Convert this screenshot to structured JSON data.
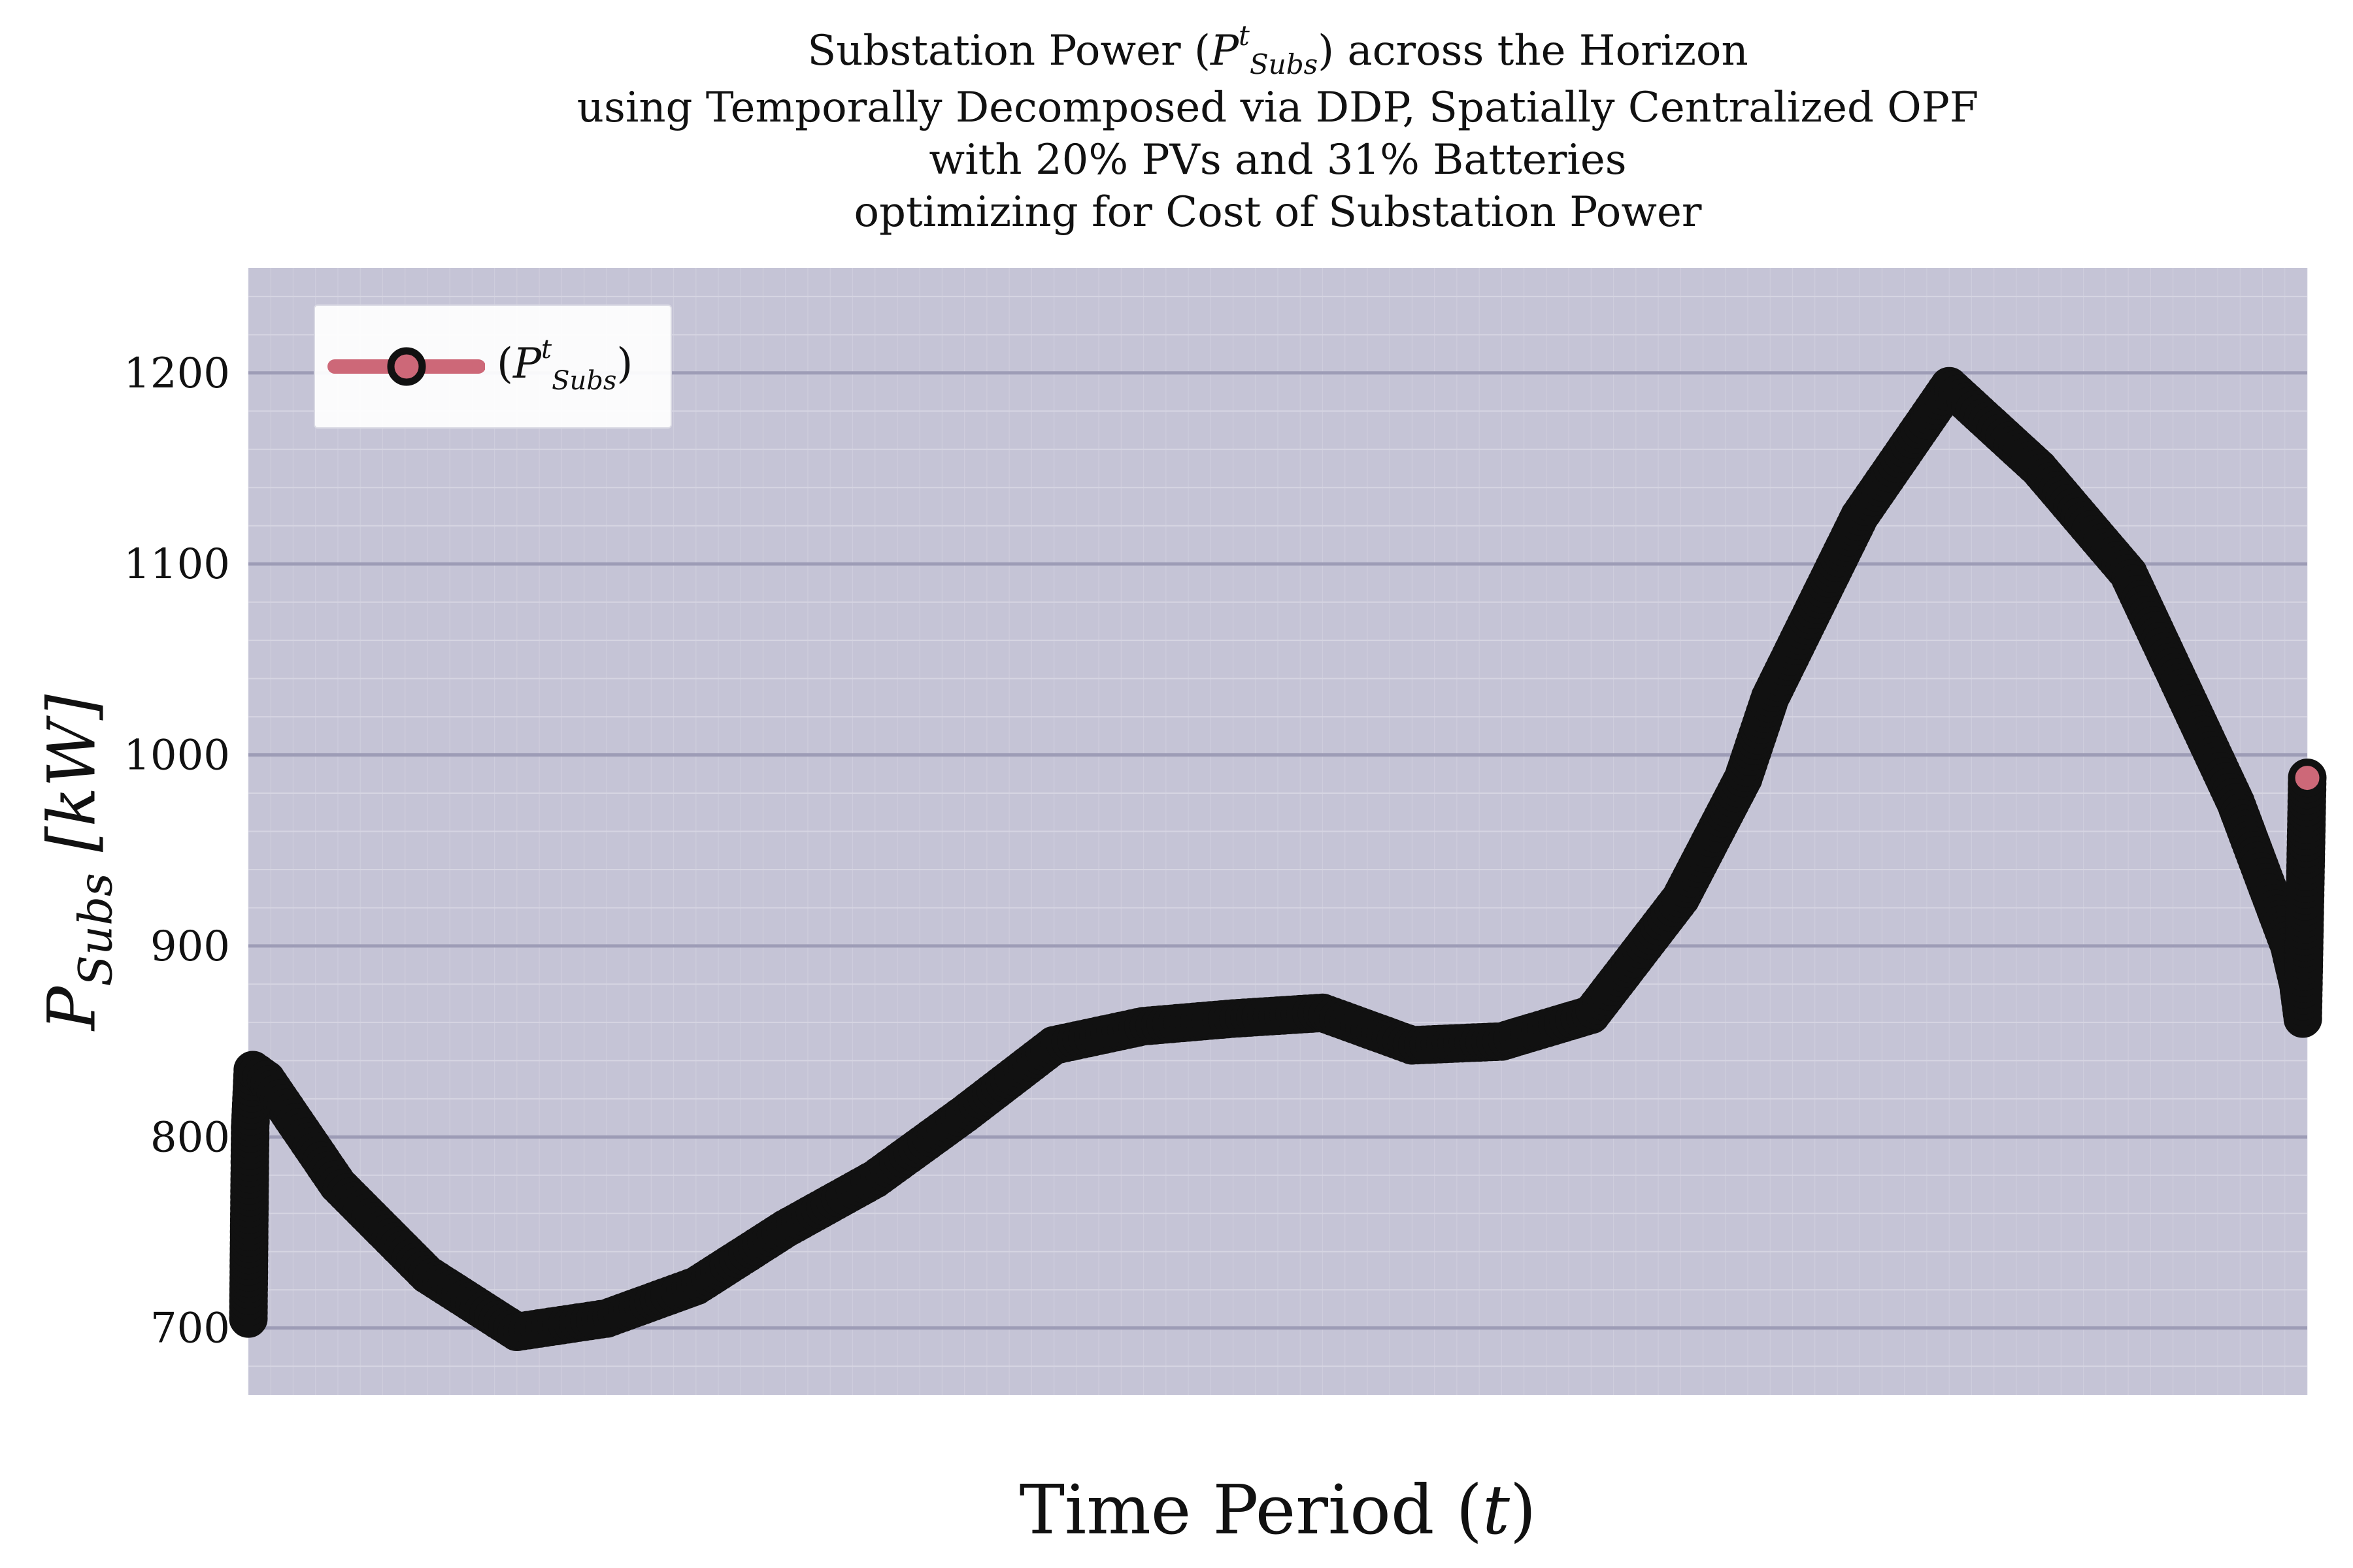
{
  "title": {
    "line1_pre": "Substation Power (",
    "line1_var": "P",
    "line1_sup": "t",
    "line1_sub": "Subs",
    "line1_post": ") across the Horizon",
    "line2": "using Temporally Decomposed via DDP, Spatially Centralized OPF",
    "line3": "with 20% PVs and 31% Batteries",
    "line4": "optimizing for Cost of Substation Power"
  },
  "axes": {
    "xlabel_pre": "Time Period (",
    "xlabel_var": "t",
    "xlabel_post": ")",
    "ylabel_var": "P",
    "ylabel_sub": "Subs",
    "ylabel_unit": "[kW]"
  },
  "legend": {
    "pre": "(",
    "var": "P",
    "sup": "t",
    "sub": "Subs",
    "post": ")"
  },
  "colors": {
    "plot_background": "#c5c4d6",
    "major_grid": "#9d9cb6",
    "minor_grid": "#d6d5e2",
    "line": "#cd6878",
    "marker_fill": "#cd6878",
    "marker_edge": "#111111"
  },
  "chart_data": {
    "type": "line",
    "x_range": [
      1,
      24
    ],
    "ylim": [
      665,
      1255
    ],
    "y_ticks": [
      700,
      800,
      900,
      1000,
      1100,
      1200
    ],
    "grid": true,
    "legend_position": "top-left",
    "series": [
      {
        "name": "(P^t_Subs)",
        "x": [
          1,
          1.02,
          1.05,
          1.2,
          2,
          3,
          4,
          5,
          6,
          7,
          8,
          9,
          10,
          11,
          12,
          13,
          14,
          15,
          16,
          17,
          17.7,
          18,
          19,
          20,
          21,
          22,
          22.6,
          22.9,
          23.2,
          23.4,
          23.6,
          23.8,
          23.9,
          23.95,
          24
        ],
        "y": [
          705,
          805,
          835,
          830,
          775,
          728,
          698,
          705,
          722,
          752,
          778,
          812,
          848,
          858,
          862,
          865,
          848,
          850,
          864,
          925,
          988,
          1030,
          1125,
          1193,
          1150,
          1095,
          1035,
          1005,
          975,
          950,
          925,
          900,
          880,
          862,
          988
        ]
      }
    ]
  }
}
